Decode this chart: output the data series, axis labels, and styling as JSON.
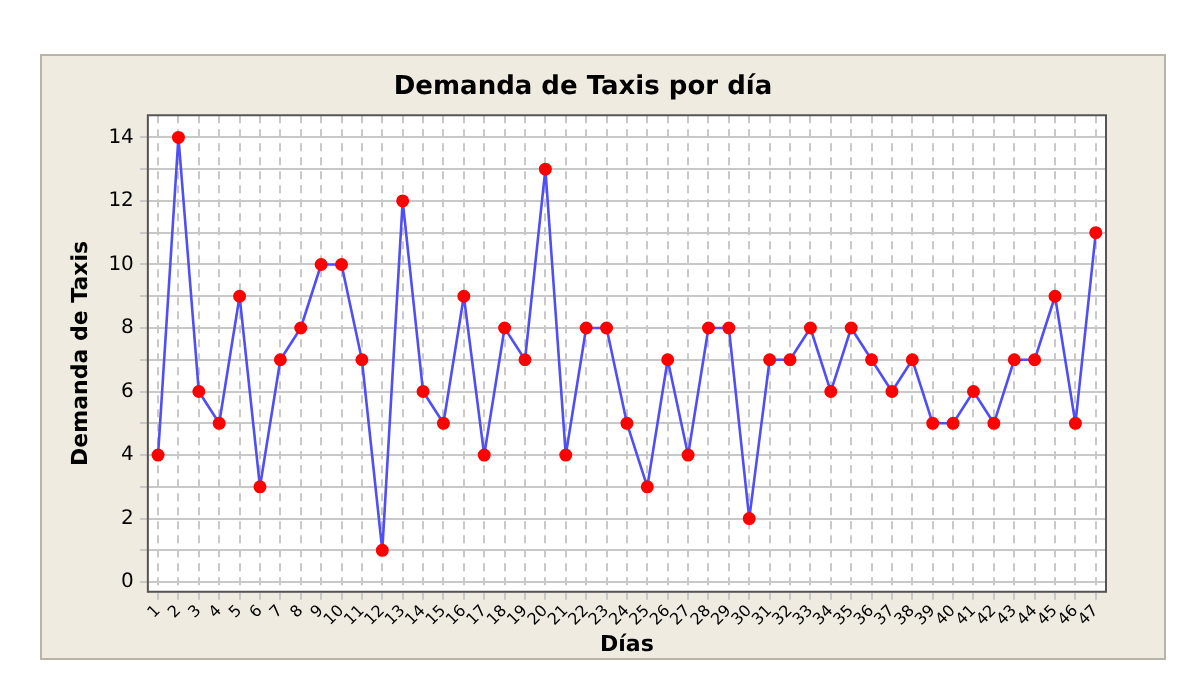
{
  "chart_data": {
    "type": "line",
    "title": "Demanda de Taxis por día",
    "xlabel": "Días",
    "ylabel": "Demanda de Taxis",
    "categories": [
      "1",
      "2",
      "3",
      "4",
      "5",
      "6",
      "7",
      "8",
      "9",
      "10",
      "11",
      "12",
      "13",
      "14",
      "15",
      "16",
      "17",
      "18",
      "19",
      "20",
      "21",
      "22",
      "23",
      "24",
      "25",
      "26",
      "27",
      "28",
      "29",
      "30",
      "31",
      "32",
      "33",
      "34",
      "35",
      "36",
      "37",
      "38",
      "39",
      "40",
      "41",
      "42",
      "43",
      "44",
      "45",
      "46",
      "47"
    ],
    "series": [
      {
        "color": "#4f4ff5",
        "colors": [
          "#ff0000",
          "#ff0000",
          "#ff0000",
          "#ff0000",
          "#ff0000",
          "#ff0000",
          "#ff0000",
          "#ff0000",
          "#ff0000",
          "#ff0000",
          "#ff0000",
          "#ff0000",
          "#ff0000",
          "#ff0000",
          "#ff0000",
          "#ff0000",
          "#ff0000",
          "#ff0000",
          "#ff0000",
          "#ff0000",
          "#ff0000",
          "#ff0000",
          "#ff0000",
          "#ff0000",
          "#ff0000",
          "#ff0000",
          "#ff0000",
          "#ff0000",
          "#ff0000",
          "#ff0000",
          "#ff0000",
          "#ff0000",
          "#ff0000",
          "#ff0000",
          "#ff0000",
          "#ff0000",
          "#ff0000",
          "#ff0000",
          "#ff0000",
          "#ff0000",
          "#ff0000",
          "#ff0000",
          "#ff0000",
          "#ff0000",
          "#ff0000",
          "#ff0000",
          "#ff0000"
        ],
        "values": [
          4,
          14,
          6,
          5,
          9,
          3,
          7,
          8,
          10,
          10,
          7,
          1,
          12,
          6,
          5,
          9,
          4,
          8,
          7,
          13,
          4,
          8,
          8,
          5,
          3,
          7,
          4,
          8,
          8,
          2,
          7,
          7,
          8,
          6,
          8,
          7,
          6,
          7,
          5,
          5,
          6,
          5,
          7,
          7,
          9,
          5,
          11
        ]
      }
    ],
    "ylim": [
      -0.3,
      14.7
    ],
    "yticks": [
      0,
      {
        "value": 1,
        "label": null
      },
      2,
      {
        "value": 3,
        "label": null
      },
      4,
      {
        "value": 5,
        "label": null
      },
      6,
      {
        "value": 7,
        "label": null
      },
      8,
      {
        "value": 9,
        "label": null
      },
      10,
      {
        "value": 11,
        "label": null
      },
      12,
      {
        "value": 13,
        "label": null
      },
      14
    ],
    "grid": true,
    "marker": "circle",
    "line_style": "solid",
    "legend": false
  }
}
